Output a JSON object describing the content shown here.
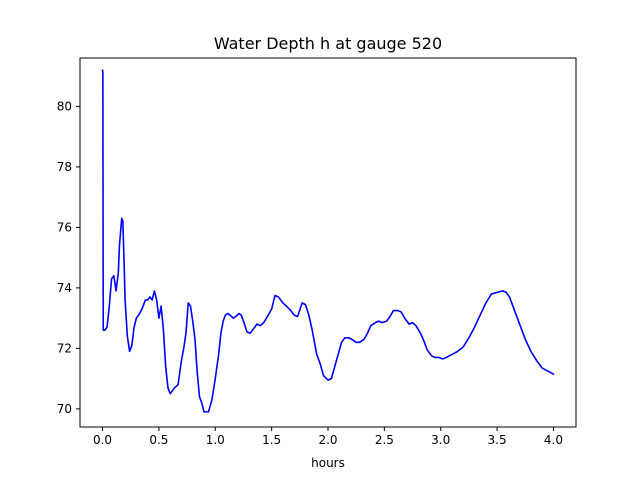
{
  "chart_data": {
    "type": "line",
    "title": "Water Depth h at gauge 520",
    "xlabel": "hours",
    "ylabel": "",
    "xlim": [
      -0.2,
      4.2
    ],
    "ylim": [
      69.4,
      81.6
    ],
    "x_ticks": [
      0.0,
      0.5,
      1.0,
      1.5,
      2.0,
      2.5,
      3.0,
      3.5,
      4.0
    ],
    "x_tick_labels": [
      "0.0",
      "0.5",
      "1.0",
      "1.5",
      "2.0",
      "2.5",
      "3.0",
      "3.5",
      "4.0"
    ],
    "y_ticks": [
      70,
      72,
      74,
      76,
      78,
      80
    ],
    "y_tick_labels": [
      "70",
      "72",
      "74",
      "76",
      "78",
      "80"
    ],
    "grid": false,
    "line_color": "#0000ff",
    "series": [
      {
        "x": [
          0.0,
          0.003,
          0.006,
          0.02,
          0.04,
          0.06,
          0.08,
          0.1,
          0.12,
          0.14,
          0.15,
          0.17,
          0.18,
          0.19,
          0.2,
          0.22,
          0.24,
          0.26,
          0.28,
          0.3,
          0.32,
          0.35,
          0.38,
          0.4,
          0.42,
          0.44,
          0.46,
          0.48,
          0.5,
          0.52,
          0.54,
          0.56,
          0.58,
          0.6,
          0.62,
          0.64,
          0.67,
          0.7,
          0.72,
          0.74,
          0.76,
          0.78,
          0.8,
          0.82,
          0.84,
          0.86,
          0.88,
          0.9,
          0.92,
          0.94,
          0.97,
          1.0,
          1.03,
          1.05,
          1.07,
          1.09,
          1.11,
          1.13,
          1.16,
          1.18,
          1.21,
          1.23,
          1.26,
          1.28,
          1.31,
          1.34,
          1.37,
          1.4,
          1.43,
          1.47,
          1.5,
          1.53,
          1.56,
          1.58,
          1.6,
          1.63,
          1.67,
          1.7,
          1.73,
          1.77,
          1.8,
          1.83,
          1.86,
          1.88,
          1.9,
          1.93,
          1.96,
          2.0,
          2.03,
          2.06,
          2.09,
          2.12,
          2.15,
          2.18,
          2.21,
          2.25,
          2.28,
          2.32,
          2.35,
          2.38,
          2.42,
          2.45,
          2.48,
          2.52,
          2.55,
          2.58,
          2.62,
          2.65,
          2.68,
          2.72,
          2.75,
          2.78,
          2.82,
          2.85,
          2.88,
          2.92,
          2.95,
          2.98,
          3.02,
          3.05,
          3.1,
          3.15,
          3.2,
          3.25,
          3.3,
          3.35,
          3.4,
          3.45,
          3.5,
          3.55,
          3.58,
          3.61,
          3.65,
          3.7,
          3.75,
          3.8,
          3.85,
          3.9,
          3.95,
          4.0
        ],
        "y": [
          81.2,
          81.1,
          72.6,
          72.6,
          72.7,
          73.4,
          74.3,
          74.4,
          73.9,
          74.5,
          75.4,
          76.3,
          76.2,
          75.0,
          73.6,
          72.4,
          71.9,
          72.1,
          72.7,
          73.0,
          73.1,
          73.3,
          73.6,
          73.6,
          73.7,
          73.6,
          73.9,
          73.6,
          73.0,
          73.4,
          72.6,
          71.4,
          70.7,
          70.5,
          70.6,
          70.7,
          70.8,
          71.6,
          72.0,
          72.5,
          73.5,
          73.4,
          72.9,
          72.3,
          71.2,
          70.4,
          70.2,
          69.9,
          69.9,
          69.9,
          70.3,
          71.0,
          71.8,
          72.5,
          72.9,
          73.1,
          73.15,
          73.1,
          73.0,
          73.05,
          73.15,
          73.1,
          72.8,
          72.55,
          72.5,
          72.65,
          72.8,
          72.75,
          72.85,
          73.1,
          73.3,
          73.75,
          73.7,
          73.6,
          73.5,
          73.4,
          73.25,
          73.1,
          73.05,
          73.5,
          73.45,
          73.1,
          72.6,
          72.2,
          71.8,
          71.5,
          71.1,
          70.95,
          71.0,
          71.4,
          71.8,
          72.2,
          72.35,
          72.35,
          72.3,
          72.2,
          72.2,
          72.3,
          72.5,
          72.75,
          72.85,
          72.9,
          72.85,
          72.9,
          73.05,
          73.25,
          73.25,
          73.2,
          73.0,
          72.8,
          72.85,
          72.75,
          72.5,
          72.25,
          71.95,
          71.75,
          71.7,
          71.7,
          71.65,
          71.7,
          71.8,
          71.9,
          72.05,
          72.35,
          72.7,
          73.1,
          73.5,
          73.8,
          73.85,
          73.9,
          73.85,
          73.7,
          73.3,
          72.8,
          72.3,
          71.9,
          71.6,
          71.35,
          71.25,
          71.15
        ]
      }
    ]
  }
}
